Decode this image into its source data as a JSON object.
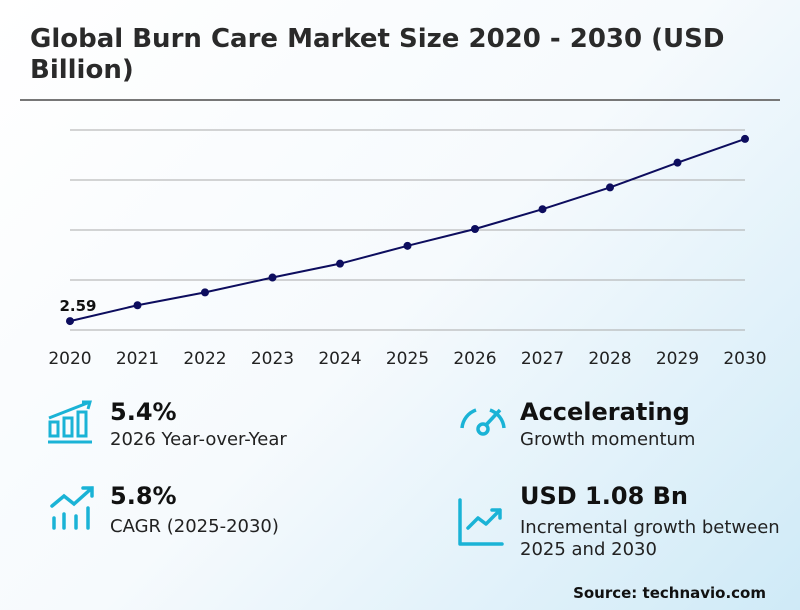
{
  "title": "Global Burn Care Market Size 2020 - 2030 (USD Billion)",
  "chart_data": {
    "type": "line",
    "title": "Global Burn Care Market Size 2020 - 2030 (USD Billion)",
    "categories": [
      "2020",
      "2021",
      "2022",
      "2023",
      "2024",
      "2025",
      "2026",
      "2027",
      "2028",
      "2029",
      "2030"
    ],
    "values": [
      2.59,
      2.75,
      2.88,
      3.03,
      3.17,
      3.35,
      3.52,
      3.72,
      3.94,
      4.19,
      4.43
    ],
    "data_labels": [
      {
        "index": 0,
        "text": "2.59"
      }
    ],
    "ylim": [
      2.5,
      4.52
    ],
    "grid": true,
    "line_color": "#0d0d5e",
    "legend": "none"
  },
  "stats": [
    {
      "value": "5.4%",
      "label": "2026 Year-over-Year",
      "icon": "bar-chart-growth-icon"
    },
    {
      "value": "Accelerating",
      "label": "Growth momentum",
      "icon": "speedometer-icon"
    },
    {
      "value": "5.8%",
      "label": "CAGR (2025-2030)",
      "icon": "trend-up-bars-icon"
    },
    {
      "value": "USD 1.08 Bn",
      "label": "Incremental growth between 2025 and 2030",
      "icon": "line-chart-up-icon"
    }
  ],
  "source": "Source: technavio.com",
  "colors": {
    "accent": "#1ab3d6",
    "line": "#0d0d5e"
  }
}
